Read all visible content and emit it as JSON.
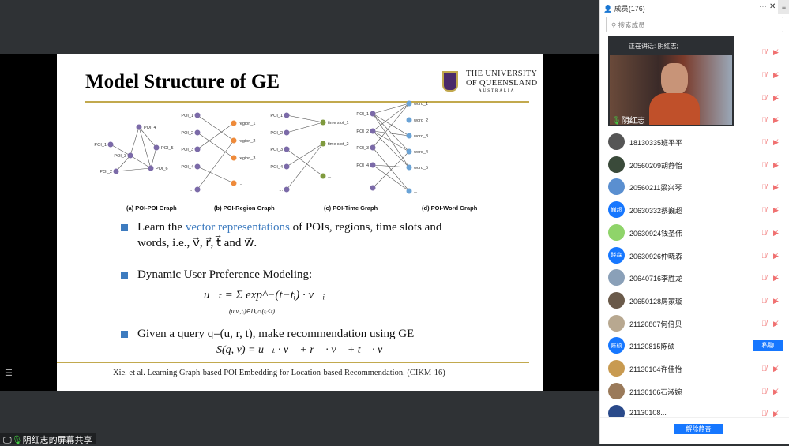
{
  "slide": {
    "title": "Model Structure of GE",
    "logo": {
      "line1": "THE UNIVERSITY",
      "line2": "OF QUEENSLAND",
      "line3": "AUSTRALIA"
    },
    "graphs": {
      "a": {
        "caption": "(a) POI-POI Graph",
        "nodes": [
          "POI_1",
          "POI_2",
          "POI_3",
          "POI_4",
          "POI_5",
          "POI_6"
        ]
      },
      "b": {
        "caption": "(b) POI-Region Graph",
        "left": [
          "POI_1",
          "POI_2",
          "POI_3",
          "POI_4",
          "..."
        ],
        "right": [
          "region_1",
          "region_2",
          "region_3",
          "..."
        ]
      },
      "c": {
        "caption": "(c) POI-Time Graph",
        "left": [
          "POI_1",
          "POI_2",
          "POI_3",
          "POI_4",
          "..."
        ],
        "right": [
          "time slot_1",
          "time slot_2",
          "..."
        ]
      },
      "d": {
        "caption": "(d) POI-Word Graph",
        "left": [
          "POI_1",
          "POI_2",
          "POI_3",
          "POI_4",
          "..."
        ],
        "right": [
          "word_1",
          "word_2",
          "word_3",
          "word_4",
          "word_5",
          "..."
        ]
      }
    },
    "colors": {
      "poi": "#7b6aa8",
      "region": "#ee8a3a",
      "time": "#7f9a3e",
      "word": "#6aa3d6",
      "accent": "#3d7bbf",
      "gold": "#c2a94e"
    },
    "bullets": [
      {
        "pre": "Learn the ",
        "highlight": "vector representations",
        "post": " of POIs, regions, time slots and",
        "line2": "words, i.e., v⃗, r⃗, t⃗ and w⃗."
      },
      {
        "text": "Dynamic User Preference Modeling:",
        "formula": "u⃗ₜ =  Σ  exp^−(t−tᵢ) · v⃗ᵢ",
        "formula_sub": "(u,vᵢ,tᵢ)∈Dᵤ∩(tᵢ<t)"
      },
      {
        "text": "Given a query q=(u, r, t), make recommendation using GE",
        "formula": "S(q, v) = u⃗ₜ · v⃗ + r⃗ · v⃗ + t⃗ · v⃗"
      }
    ],
    "reference": "Xie. et al. Learning Graph-based POI Embedding for Location-based Recommendation. (CIKM-16)"
  },
  "share_label": "阴红志的屏幕共享",
  "panel": {
    "title": "成员(176)",
    "search_placeholder": "搜索成员",
    "speaking": "正在讲话: 阴红志;",
    "video_name": "阴红志",
    "members": [
      {
        "name": "18130335班平平",
        "color": "#555"
      },
      {
        "name": "20560209胡静怡",
        "color": "#3a4a3a"
      },
      {
        "name": "20560211梁兴琴",
        "color": "#5a8fd0"
      },
      {
        "name": "20630332蔡巍超",
        "avatar_text": "巍超",
        "color": "#1677ff"
      },
      {
        "name": "20630924钱圣伟",
        "color": "#8fd46a"
      },
      {
        "name": "20630926仲晓森",
        "avatar_text": "晓森",
        "color": "#1677ff"
      },
      {
        "name": "20640716李胜龙",
        "color": "#8aa0b8"
      },
      {
        "name": "20650128房家璇",
        "color": "#6a5a4a"
      },
      {
        "name": "21120807何倍贝",
        "color": "#b8a890"
      },
      {
        "name": "21120815陈硕",
        "avatar_text": "陈硕",
        "color": "#1677ff",
        "button": "私聊"
      },
      {
        "name": "21130104许佳怡",
        "color": "#c89a50"
      },
      {
        "name": "21130106石淑婉",
        "color": "#9a7a5a"
      },
      {
        "name": "21130108...",
        "color": "#2a4a8a"
      }
    ],
    "unmute_button": "解除静音"
  }
}
